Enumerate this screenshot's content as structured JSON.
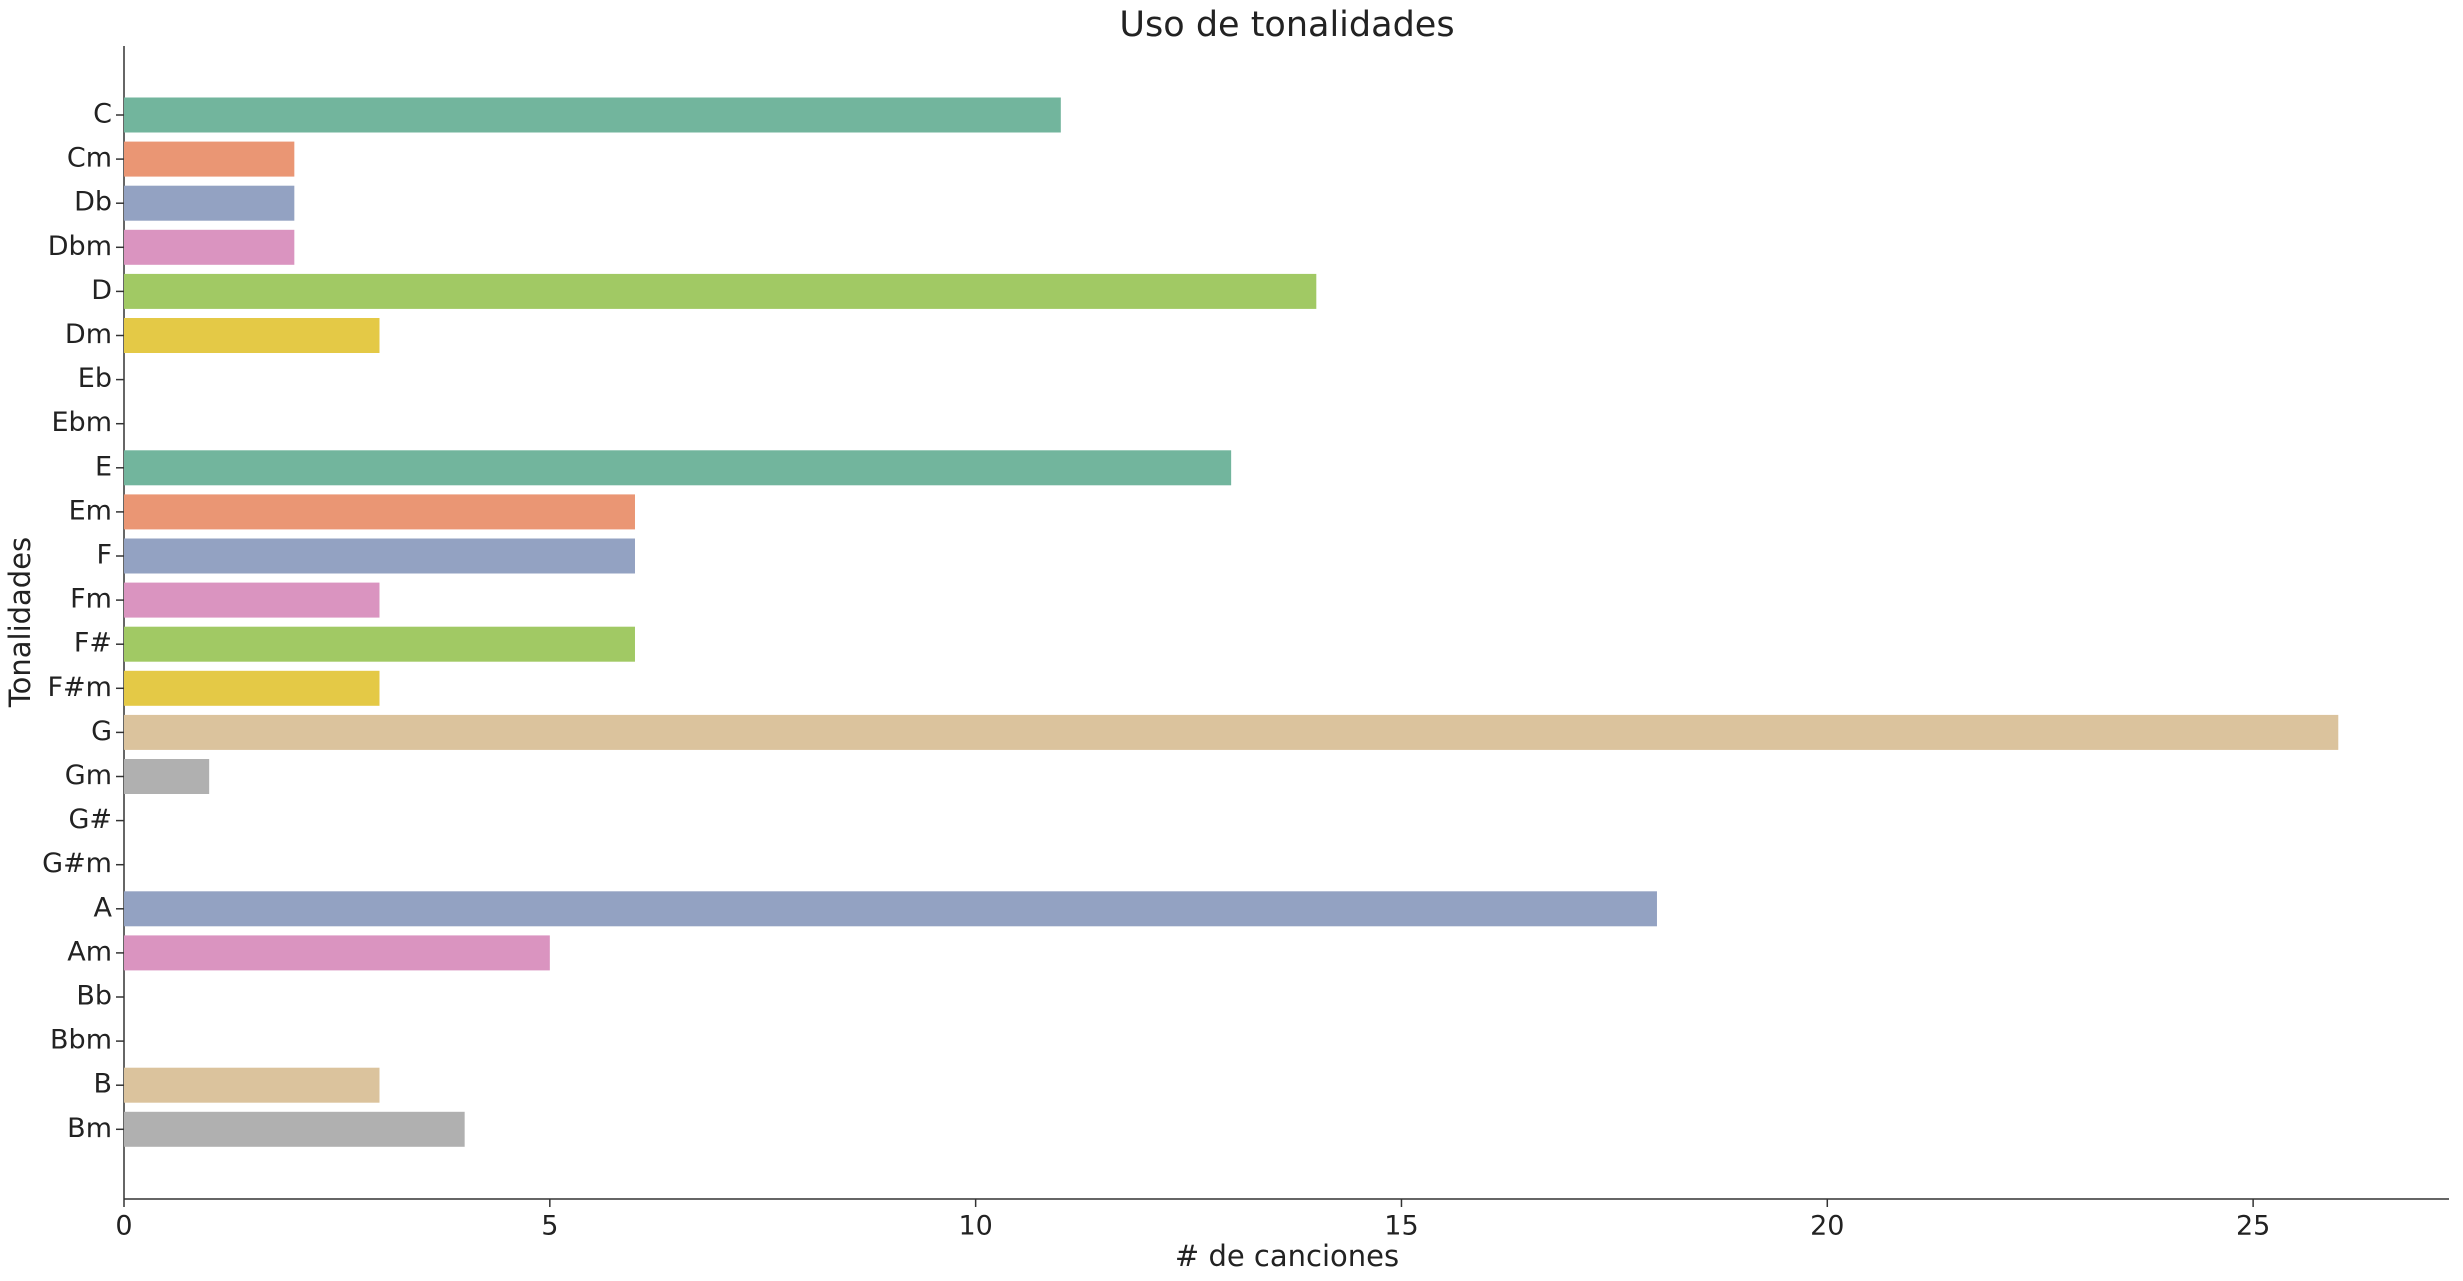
{
  "chart_data": {
    "type": "barh",
    "title": "Uso de tonalidades",
    "xlabel": "# de canciones",
    "ylabel": "Tonalidades",
    "categories": [
      "C",
      "Cm",
      "Db",
      "Dbm",
      "D",
      "Dm",
      "Eb",
      "Ebm",
      "E",
      "Em",
      "F",
      "Fm",
      "F#",
      "F#m",
      "G",
      "Gm",
      "G#",
      "G#m",
      "A",
      "Am",
      "Bb",
      "Bbm",
      "B",
      "Bm"
    ],
    "values": [
      11,
      2,
      2,
      2,
      14,
      3,
      0,
      0,
      13,
      6,
      6,
      3,
      6,
      3,
      26,
      1,
      0,
      0,
      18,
      5,
      0,
      0,
      3,
      4
    ],
    "colors": [
      "#72b59d",
      "#ea9674",
      "#93a2c2",
      "#da94c0",
      "#a1c964",
      "#e4c946",
      "#dbc39d",
      "#b0b0b0"
    ],
    "xlim": [
      0,
      27.3
    ],
    "xticks": [
      0,
      5,
      10,
      15,
      20,
      25
    ],
    "grid": false
  }
}
